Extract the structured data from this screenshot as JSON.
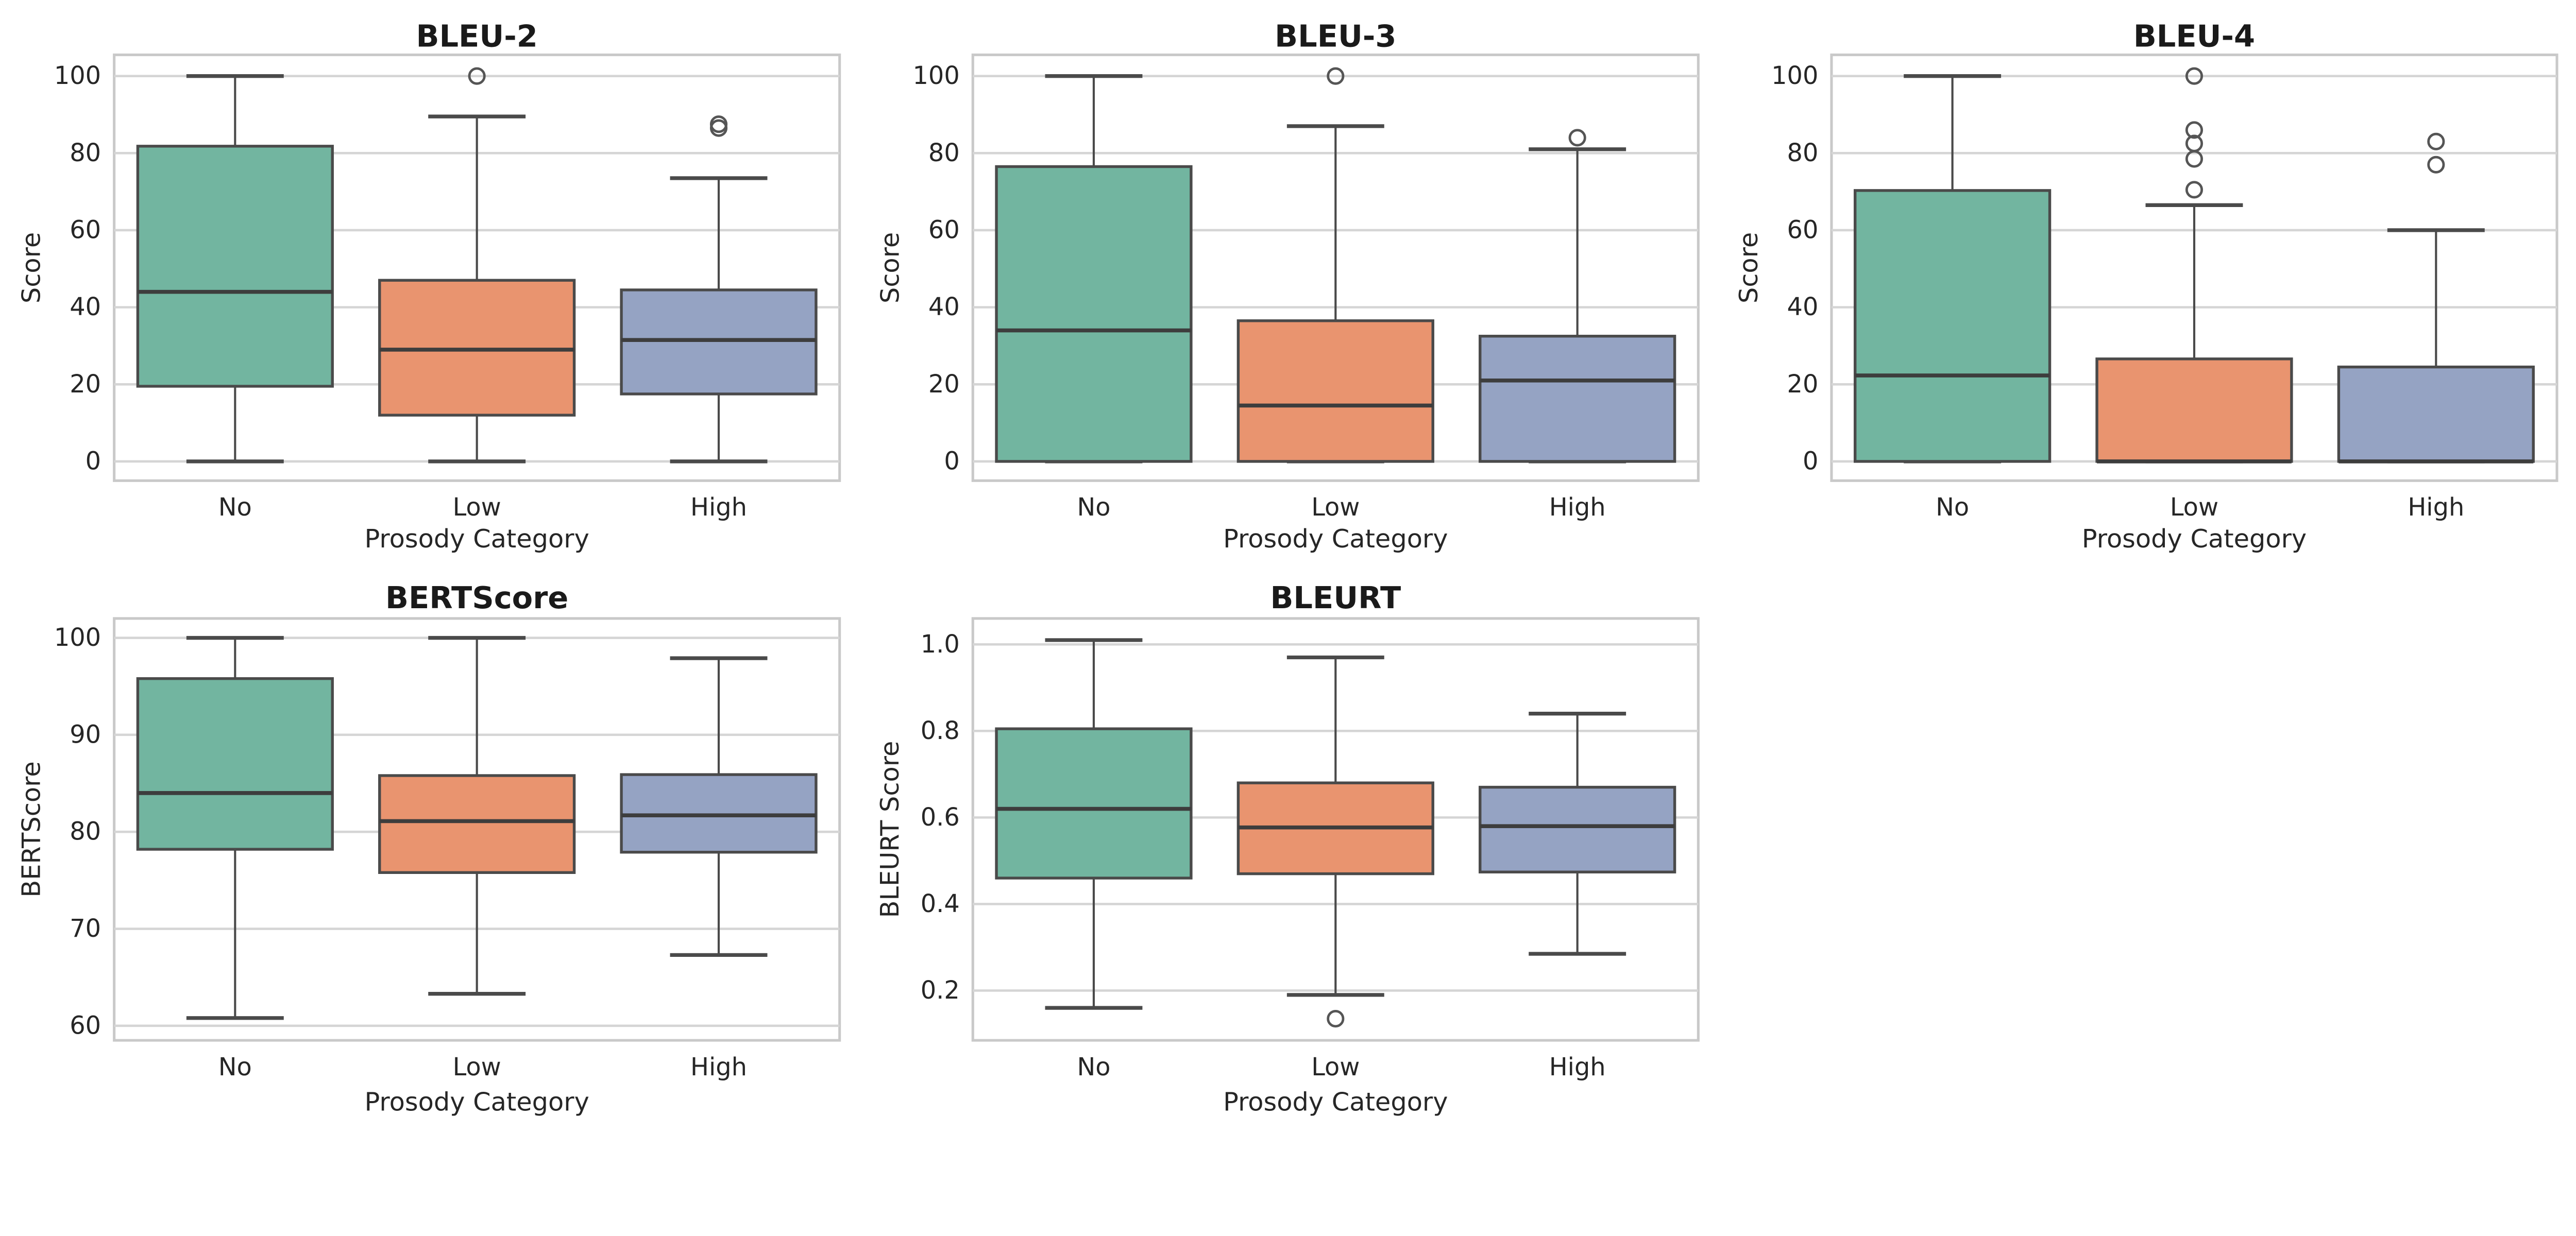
{
  "figure": {
    "background": "#ffffff",
    "grid_color": "#d5d5d5",
    "spine_color": "#c9c9c9",
    "box_edge_color": "#4a4a4a",
    "median_color": "#3d3d3d",
    "whisker_color": "#4a4a4a",
    "outlier_color": "#555555",
    "text_color": "#262626",
    "title_color": "#1a1a1a",
    "category_colors": {
      "No": "#72b5a0",
      "Low": "#e9946f",
      "High": "#95a3c3"
    }
  },
  "chart_data": [
    {
      "type": "box",
      "title": "BLEU-2",
      "xlabel": "Prosody Category",
      "ylabel": "Score",
      "categories": [
        "No",
        "Low",
        "High"
      ],
      "ylim": [
        -5,
        105.5
      ],
      "yticks": [
        0,
        20,
        40,
        60,
        80,
        100
      ],
      "ytick_labels": [
        "0",
        "20",
        "40",
        "60",
        "80",
        "100"
      ],
      "grid": true,
      "legend": null,
      "boxes": [
        {
          "category": "No",
          "whisker_low": 0,
          "q1": 19.5,
          "median": 44,
          "q3": 81.8,
          "whisker_high": 100,
          "outliers": []
        },
        {
          "category": "Low",
          "whisker_low": 0,
          "q1": 12,
          "median": 29,
          "q3": 47,
          "whisker_high": 89.5,
          "outliers": [
            100
          ]
        },
        {
          "category": "High",
          "whisker_low": 0,
          "q1": 17.5,
          "median": 31.5,
          "q3": 44.5,
          "whisker_high": 73.5,
          "outliers": [
            86.5,
            87.5
          ]
        }
      ]
    },
    {
      "type": "box",
      "title": "BLEU-3",
      "xlabel": "Prosody Category",
      "ylabel": "Score",
      "categories": [
        "No",
        "Low",
        "High"
      ],
      "ylim": [
        -5,
        105.5
      ],
      "yticks": [
        0,
        20,
        40,
        60,
        80,
        100
      ],
      "ytick_labels": [
        "0",
        "20",
        "40",
        "60",
        "80",
        "100"
      ],
      "grid": true,
      "legend": null,
      "boxes": [
        {
          "category": "No",
          "whisker_low": 0,
          "q1": 0,
          "median": 34,
          "q3": 76.5,
          "whisker_high": 100,
          "outliers": []
        },
        {
          "category": "Low",
          "whisker_low": 0,
          "q1": 0,
          "median": 14.5,
          "q3": 36.5,
          "whisker_high": 87,
          "outliers": [
            100
          ]
        },
        {
          "category": "High",
          "whisker_low": 0,
          "q1": 0,
          "median": 21,
          "q3": 32.5,
          "whisker_high": 81,
          "outliers": [
            84
          ]
        }
      ]
    },
    {
      "type": "box",
      "title": "BLEU-4",
      "xlabel": "Prosody Category",
      "ylabel": "Score",
      "categories": [
        "No",
        "Low",
        "High"
      ],
      "ylim": [
        -5,
        105.5
      ],
      "yticks": [
        0,
        20,
        40,
        60,
        80,
        100
      ],
      "ytick_labels": [
        "0",
        "20",
        "40",
        "60",
        "80",
        "100"
      ],
      "grid": true,
      "legend": null,
      "boxes": [
        {
          "category": "No",
          "whisker_low": 0,
          "q1": 0,
          "median": 22.3,
          "q3": 70.3,
          "whisker_high": 100,
          "outliers": []
        },
        {
          "category": "Low",
          "whisker_low": 0,
          "q1": 0,
          "median": 0,
          "q3": 26.6,
          "whisker_high": 66.5,
          "outliers": [
            70.5,
            78.5,
            82.5,
            86,
            100
          ]
        },
        {
          "category": "High",
          "whisker_low": 0,
          "q1": 0,
          "median": 0,
          "q3": 24.5,
          "whisker_high": 60,
          "outliers": [
            77,
            83
          ]
        }
      ]
    },
    {
      "type": "box",
      "title": "BERTScore",
      "xlabel": "Prosody Category",
      "ylabel": "BERTScore",
      "categories": [
        "No",
        "Low",
        "High"
      ],
      "ylim": [
        58.5,
        102
      ],
      "yticks": [
        60,
        70,
        80,
        90,
        100
      ],
      "ytick_labels": [
        "60",
        "70",
        "80",
        "90",
        "100"
      ],
      "grid": true,
      "legend": null,
      "boxes": [
        {
          "category": "No",
          "whisker_low": 60.8,
          "q1": 78.2,
          "median": 84,
          "q3": 95.8,
          "whisker_high": 100,
          "outliers": []
        },
        {
          "category": "Low",
          "whisker_low": 63.3,
          "q1": 75.8,
          "median": 81.1,
          "q3": 85.8,
          "whisker_high": 100,
          "outliers": []
        },
        {
          "category": "High",
          "whisker_low": 67.3,
          "q1": 77.9,
          "median": 81.7,
          "q3": 85.9,
          "whisker_high": 97.9,
          "outliers": []
        }
      ]
    },
    {
      "type": "box",
      "title": "BLEURT",
      "xlabel": "Prosody Category",
      "ylabel": "BLEURT Score",
      "categories": [
        "No",
        "Low",
        "High"
      ],
      "ylim": [
        0.085,
        1.06
      ],
      "yticks": [
        0.2,
        0.4,
        0.6,
        0.8,
        1.0
      ],
      "ytick_labels": [
        "0.2",
        "0.4",
        "0.6",
        "0.8",
        "1.0"
      ],
      "grid": true,
      "legend": null,
      "boxes": [
        {
          "category": "No",
          "whisker_low": 0.16,
          "q1": 0.46,
          "median": 0.62,
          "q3": 0.805,
          "whisker_high": 1.01,
          "outliers": []
        },
        {
          "category": "Low",
          "whisker_low": 0.19,
          "q1": 0.47,
          "median": 0.577,
          "q3": 0.68,
          "whisker_high": 0.97,
          "outliers": [
            0.135
          ]
        },
        {
          "category": "High",
          "whisker_low": 0.285,
          "q1": 0.474,
          "median": 0.58,
          "q3": 0.67,
          "whisker_high": 0.84,
          "outliers": []
        }
      ]
    }
  ]
}
